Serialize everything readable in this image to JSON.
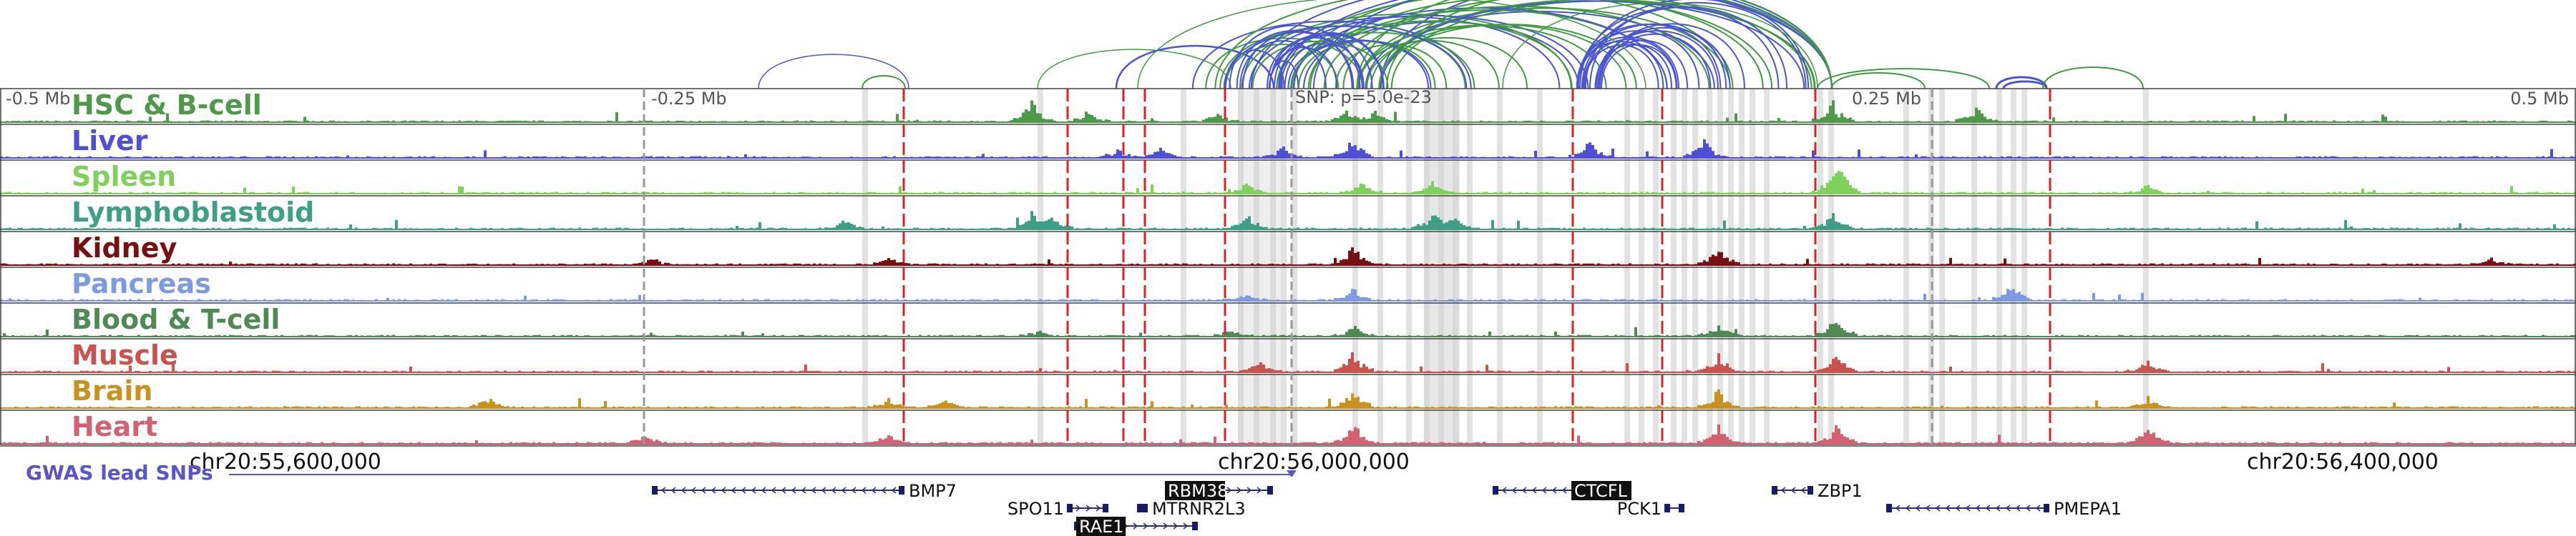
{
  "scale": {
    "left_label": "-0.5 Mb",
    "q1_label": "-0.25 Mb",
    "snp_label": "SNP: p=5.0e-23",
    "q3_label": "0.25 Mb",
    "right_label": "0.5 Mb"
  },
  "tracks": [
    {
      "name": "HSC & B-cell",
      "color": "#4e9a4a",
      "hot": [
        [
          1440,
          1.0
        ],
        [
          1520,
          0.6
        ],
        [
          1700,
          0.4
        ],
        [
          1880,
          0.5
        ],
        [
          2560,
          0.9
        ],
        [
          2760,
          0.7
        ],
        [
          1920,
          0.5
        ]
      ]
    },
    {
      "name": "Liver",
      "color": "#4f4fd6",
      "hot": [
        [
          1890,
          1.0
        ],
        [
          1790,
          0.5
        ],
        [
          2220,
          0.8
        ],
        [
          2380,
          0.9
        ],
        [
          1560,
          0.4
        ],
        [
          1620,
          0.5
        ]
      ]
    },
    {
      "name": "Spleen",
      "color": "#7fd15c",
      "hot": [
        [
          2570,
          1.0
        ],
        [
          2560,
          0.7
        ],
        [
          1740,
          0.5
        ],
        [
          1900,
          0.6
        ],
        [
          2000,
          0.6
        ],
        [
          3000,
          0.4
        ]
      ]
    },
    {
      "name": "Lymphoblastoid",
      "color": "#3f9f86",
      "hot": [
        [
          1440,
          0.8
        ],
        [
          1470,
          0.6
        ],
        [
          1740,
          0.8
        ],
        [
          2000,
          0.8
        ],
        [
          2030,
          0.7
        ],
        [
          2560,
          0.8
        ],
        [
          1180,
          0.5
        ]
      ]
    },
    {
      "name": "Kidney",
      "color": "#7a0f12",
      "hot": [
        [
          1890,
          1.0
        ],
        [
          2400,
          0.9
        ],
        [
          1240,
          0.4
        ],
        [
          910,
          0.3
        ],
        [
          3480,
          0.3
        ]
      ]
    },
    {
      "name": "Pancreas",
      "color": "#7e9ae0",
      "hot": [
        [
          2810,
          1.0
        ],
        [
          1890,
          0.6
        ],
        [
          1740,
          0.3
        ]
      ]
    },
    {
      "name": "Blood & T-cell",
      "color": "#4f8a55",
      "hot": [
        [
          2565,
          1.0
        ],
        [
          1720,
          0.4
        ],
        [
          1890,
          0.5
        ],
        [
          2400,
          0.6
        ],
        [
          1450,
          0.3
        ]
      ]
    },
    {
      "name": "Muscle",
      "color": "#c9534f",
      "hot": [
        [
          1890,
          1.0
        ],
        [
          2400,
          0.8
        ],
        [
          2565,
          0.9
        ],
        [
          1760,
          0.5
        ],
        [
          3000,
          0.6
        ]
      ]
    },
    {
      "name": "Brain",
      "color": "#c9921f",
      "hot": [
        [
          1890,
          1.0
        ],
        [
          2400,
          0.9
        ],
        [
          680,
          0.5
        ],
        [
          1320,
          0.4
        ],
        [
          1240,
          0.4
        ],
        [
          3000,
          0.5
        ]
      ]
    },
    {
      "name": "Heart",
      "color": "#d46172",
      "hot": [
        [
          1890,
          1.0
        ],
        [
          2400,
          0.8
        ],
        [
          2565,
          0.9
        ],
        [
          3000,
          0.9
        ],
        [
          1240,
          0.5
        ],
        [
          900,
          0.4
        ]
      ]
    }
  ],
  "coords": {
    "c1": "chr20:55,600,000",
    "c2": "chr20:56,000,000",
    "c3": "chr20:56,400,000"
  },
  "gwas_label": "GWAS lead SNPs",
  "genes": [
    {
      "name": "BMP7",
      "start": 915,
      "end": 1260,
      "row": 0,
      "strand": "-",
      "highlight": false
    },
    {
      "name": "RBM38",
      "start": 1650,
      "end": 1775,
      "row": 0,
      "strand": "+",
      "highlight": true
    },
    {
      "name": "CTCFL",
      "start": 2090,
      "end": 2260,
      "row": 0,
      "strand": "-",
      "highlight": true
    },
    {
      "name": "ZBP1",
      "start": 2480,
      "end": 2530,
      "row": 0,
      "strand": "-",
      "highlight": false
    },
    {
      "name": "SPO11",
      "start": 1495,
      "end": 1545,
      "row": 1,
      "strand": "+",
      "highlight": false
    },
    {
      "name": "MTRNR2L3",
      "start": 1593,
      "end": 1600,
      "row": 1,
      "strand": "+",
      "highlight": false
    },
    {
      "name": "PCK1",
      "start": 2330,
      "end": 2350,
      "row": 1,
      "strand": "+",
      "highlight": false
    },
    {
      "name": "PMEPA1",
      "start": 2640,
      "end": 2860,
      "row": 1,
      "strand": "-",
      "highlight": false
    },
    {
      "name": "RAE1",
      "start": 1505,
      "end": 1670,
      "row": 2,
      "strand": "+",
      "highlight": true
    }
  ],
  "colors": {
    "gwas": "#5a55c9",
    "red_line": "#e02020",
    "gray_band": "#cfcfcf",
    "green_arc": "#3f9b3f",
    "blue_arc": "#4a55cf"
  }
}
